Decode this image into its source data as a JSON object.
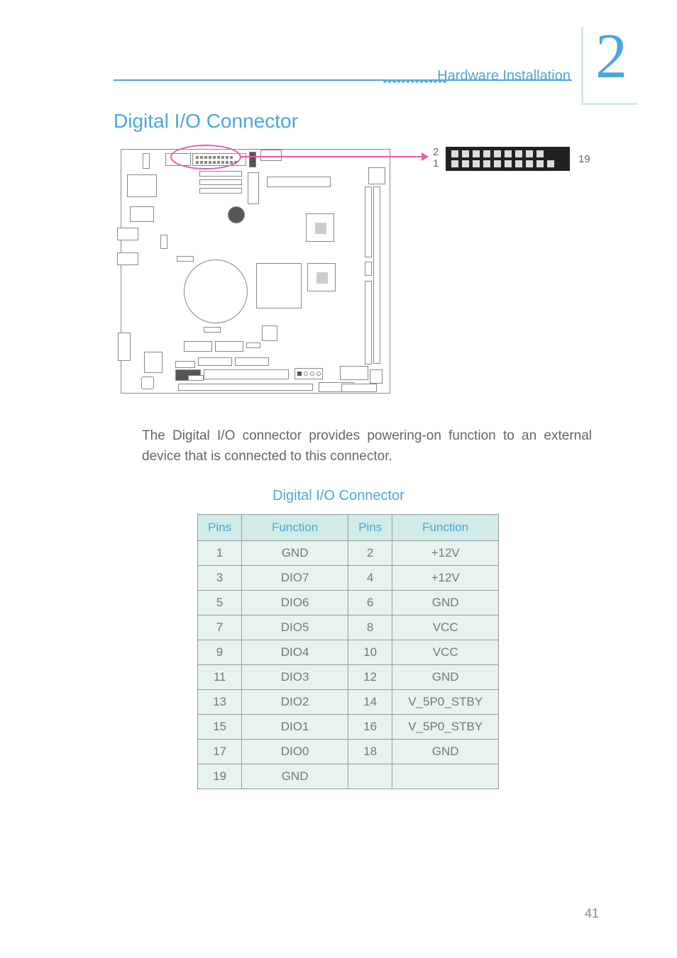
{
  "header": {
    "chapter_number": "2",
    "breadcrumb": "Hardware Installation"
  },
  "section": {
    "title": "Digital I/O Connector"
  },
  "connector_detail": {
    "top_start_pin": "2",
    "bottom_start_pin": "1",
    "end_pin": "19",
    "block_color": "#222222",
    "pin_color": "#dddddd",
    "highlight_color": "#e85aa8",
    "top_pin_count": 9,
    "bottom_pin_count": 10
  },
  "body_paragraph": "The Digital I/O connector provides powering-on function to an external device that is connected to this connector.",
  "table": {
    "title": "Digital I/O Connector",
    "headers": {
      "pins": "Pins",
      "function": "Function"
    },
    "header_bg": "#d0ebe8",
    "header_color": "#4aa8d8",
    "cell_bg": "#e6f3f1",
    "cell_color": "#777777",
    "border_color": "#999999",
    "rows": [
      {
        "p1": "1",
        "f1": "GND",
        "p2": "2",
        "f2": "+12V"
      },
      {
        "p1": "3",
        "f1": "DIO7",
        "p2": "4",
        "f2": "+12V"
      },
      {
        "p1": "5",
        "f1": "DIO6",
        "p2": "6",
        "f2": "GND"
      },
      {
        "p1": "7",
        "f1": "DIO5",
        "p2": "8",
        "f2": "VCC"
      },
      {
        "p1": "9",
        "f1": "DIO4",
        "p2": "10",
        "f2": "VCC"
      },
      {
        "p1": "11",
        "f1": "DIO3",
        "p2": "12",
        "f2": "GND"
      },
      {
        "p1": "13",
        "f1": "DIO2",
        "p2": "14",
        "f2": "V_5P0_STBY"
      },
      {
        "p1": "15",
        "f1": "DIO1",
        "p2": "16",
        "f2": "V_5P0_STBY"
      },
      {
        "p1": "17",
        "f1": "DIO0",
        "p2": "18",
        "f2": "GND"
      },
      {
        "p1": "19",
        "f1": "GND",
        "p2": "",
        "f2": ""
      }
    ]
  },
  "page_number": "41",
  "style": {
    "accent_color": "#4aa8d8",
    "light_accent": "#d4e8f0",
    "body_text_color": "#666666"
  }
}
